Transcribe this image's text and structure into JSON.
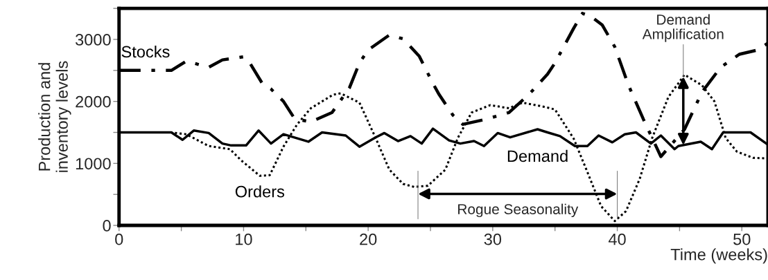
{
  "chart_data": {
    "type": "line",
    "xlabel": "Time (weeks)",
    "ylabel": "Production and\ninventory levels",
    "xlim": [
      0,
      52.1
    ],
    "xticks": [
      0,
      {
        "value": 5,
        "label": null
      },
      10,
      {
        "value": 15,
        "label": null
      },
      20,
      {
        "value": 25,
        "label": null
      },
      30,
      {
        "value": 35,
        "label": null
      },
      40,
      {
        "value": 45,
        "label": null
      },
      50
    ],
    "ylim": [
      0,
      3500
    ],
    "yticks": [
      0,
      {
        "value": 500,
        "label": null
      },
      1000,
      {
        "value": 1500,
        "label": null
      },
      2000,
      {
        "value": 2500,
        "label": null
      },
      3000,
      {
        "value": 3500,
        "label": null
      }
    ],
    "grid": false,
    "legend": false,
    "marker": "none",
    "series": [
      {
        "name": "Stocks",
        "color": "#000000",
        "line_style": "dashdot",
        "x": [
          0,
          4.2,
          5.4,
          7.2,
          8.3,
          10,
          10.5,
          11.5,
          12.2,
          13.2,
          14.1,
          15.4,
          17.1,
          18.5,
          19.3,
          20,
          21.7,
          22.8,
          24.1,
          25.2,
          25.7,
          26.8,
          27.6,
          29.4,
          31.3,
          32.9,
          34.4,
          35,
          36.5,
          37.2,
          37.9,
          38.8,
          39.8,
          40.9,
          42.1,
          43.5,
          45.4,
          46.8,
          48.3,
          49.8,
          51.3,
          52.1
        ],
        "values": [
          2500,
          2500,
          2650,
          2550,
          2670,
          2720,
          2620,
          2290,
          2200,
          2000,
          1720,
          1670,
          1820,
          2220,
          2620,
          2830,
          3070,
          3010,
          2730,
          2290,
          2110,
          1780,
          1630,
          1710,
          1820,
          2110,
          2440,
          2620,
          3180,
          3420,
          3370,
          3230,
          2880,
          2260,
          1710,
          1110,
          1550,
          2150,
          2550,
          2760,
          2830,
          2940
        ]
      },
      {
        "name": "Orders",
        "color": "#000000",
        "line_style": "dotted",
        "x": [
          0,
          4.2,
          5.4,
          7.2,
          8.9,
          9.8,
          11.3,
          12.1,
          13.2,
          14.3,
          15.4,
          17.2,
          17.8,
          19.3,
          20.6,
          21.7,
          22.8,
          23.7,
          24.8,
          26.2,
          27.2,
          28.3,
          29.8,
          31.3,
          32.4,
          34.2,
          35,
          36.5,
          37.6,
          38.7,
          39.8,
          40.7,
          41.8,
          42.8,
          44.1,
          45.4,
          46.8,
          47.8,
          48.7,
          49.6,
          50.9,
          52.1
        ],
        "values": [
          1500,
          1500,
          1470,
          1280,
          1230,
          1050,
          800,
          810,
          1270,
          1630,
          1890,
          2110,
          2130,
          1980,
          1410,
          900,
          670,
          620,
          640,
          900,
          1410,
          1820,
          1940,
          1890,
          1980,
          1910,
          1870,
          1400,
          860,
          310,
          70,
          230,
          750,
          1410,
          2070,
          2430,
          2260,
          2000,
          1410,
          1190,
          1090,
          1080
        ]
      },
      {
        "name": "Demand",
        "color": "#000000",
        "line_style": "solid",
        "x": [
          0,
          4.2,
          5.1,
          6,
          7.2,
          8.3,
          9,
          10.2,
          11.2,
          12.2,
          13.2,
          15.2,
          16.3,
          18.2,
          19.3,
          20.6,
          21.3,
          22.4,
          23.4,
          24.3,
          25.2,
          26.5,
          27.4,
          28.5,
          29.3,
          30.4,
          31.4,
          33.6,
          34.4,
          35.4,
          36.6,
          37.6,
          38.5,
          39.6,
          40.6,
          41.5,
          42.7,
          43.5,
          44.6,
          44.9,
          46.7,
          47.6,
          48.5,
          50.7,
          52.1
        ],
        "values": [
          1500,
          1500,
          1380,
          1530,
          1490,
          1320,
          1290,
          1290,
          1530,
          1320,
          1470,
          1350,
          1500,
          1450,
          1270,
          1420,
          1490,
          1360,
          1440,
          1320,
          1560,
          1370,
          1320,
          1360,
          1280,
          1490,
          1420,
          1550,
          1500,
          1440,
          1280,
          1280,
          1450,
          1340,
          1470,
          1500,
          1320,
          1450,
          1230,
          1280,
          1350,
          1230,
          1500,
          1500,
          1300
        ]
      }
    ],
    "ref_lines": [
      {
        "axis": "x",
        "value": 24,
        "color": "#808080"
      },
      {
        "axis": "x",
        "value": 40,
        "color": "#808080"
      }
    ],
    "annotations": [
      "Rogue Seasonality",
      {
        "text": "Demand Amplification",
        "x": 45.3,
        "y": 2400
      }
    ]
  }
}
